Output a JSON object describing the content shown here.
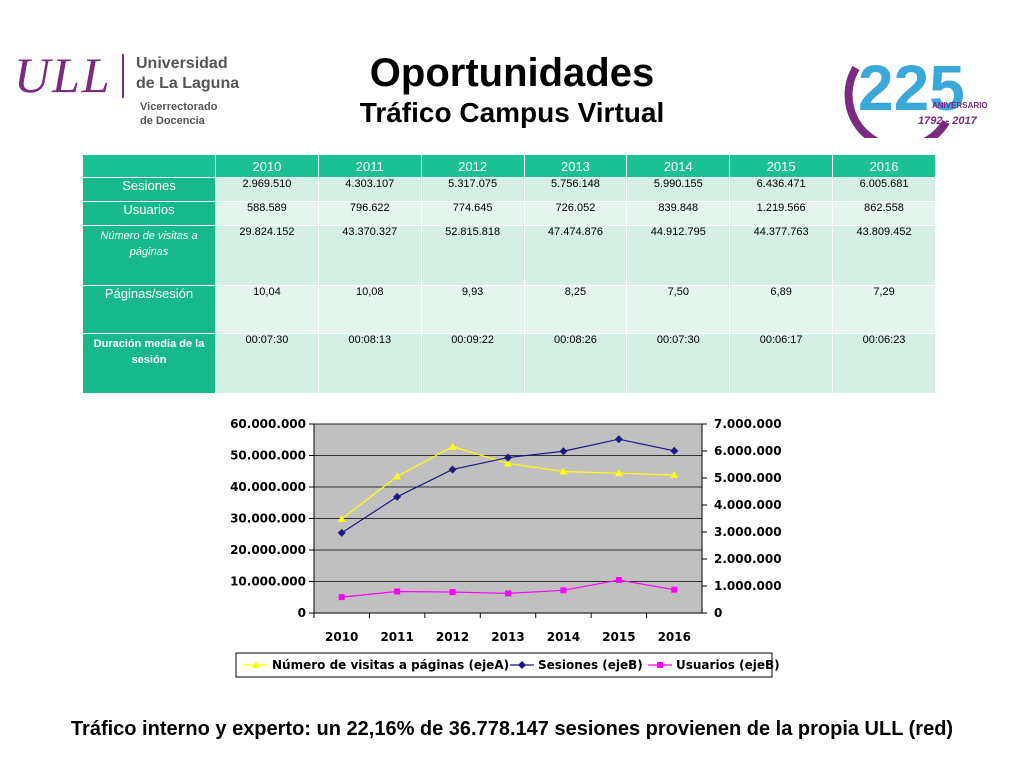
{
  "logo": {
    "mark": "ULL",
    "name_line1": "Universidad",
    "name_line2": "de La Laguna",
    "sub_line1": "Vicerrectorado",
    "sub_line2": "de Docencia"
  },
  "title": "Oportunidades",
  "subtitle": "Tráfico Campus Virtual",
  "anniversary": {
    "number": "225",
    "label": "ANIVERSARIO",
    "years": "1792 - 2017",
    "colors": {
      "purple": "#7a2a7f",
      "blue": "#3aa8d8"
    }
  },
  "table": {
    "years": [
      "2010",
      "2011",
      "2012",
      "2013",
      "2014",
      "2015",
      "2016"
    ],
    "rows": [
      {
        "label": "Sesiones",
        "values": [
          "2.969.510",
          "4.303.107",
          "5.317.075",
          "5.756.148",
          "5.990.155",
          "6.436.471",
          "6.005.681"
        ]
      },
      {
        "label": "Usuarios",
        "values": [
          "588.589",
          "796.622",
          "774.645",
          "726.052",
          "839.848",
          "1.219.566",
          "862.558"
        ]
      },
      {
        "label": "Número de visitas a páginas",
        "values": [
          "29.824.152",
          "43.370.327",
          "52.815.818",
          "47.474.876",
          "44.912.795",
          "44.377.763",
          "43.809.452"
        ]
      },
      {
        "label": "Páginas/sesión",
        "values": [
          "10,04",
          "10,08",
          "9,93",
          "8,25",
          "7,50",
          "6,89",
          "7,29"
        ]
      },
      {
        "label": "Duración media de la sesión",
        "values": [
          "00:07:30",
          "00:08:13",
          "00:09:22",
          "00:08:26",
          "00:07:30",
          "00:06:17",
          "00:06:23"
        ]
      }
    ]
  },
  "chart_data": {
    "type": "line",
    "categories": [
      "2010",
      "2011",
      "2012",
      "2013",
      "2014",
      "2015",
      "2016"
    ],
    "y_left": {
      "ylim": [
        0,
        60000000
      ],
      "ticks": [
        "0",
        "10.000.000",
        "20.000.000",
        "30.000.000",
        "40.000.000",
        "50.000.000",
        "60.000.000"
      ]
    },
    "y_right": {
      "ylim": [
        0,
        7000000
      ],
      "ticks": [
        "0",
        "1.000.000",
        "2.000.000",
        "3.000.000",
        "4.000.000",
        "5.000.000",
        "6.000.000",
        "7.000.000"
      ]
    },
    "series": [
      {
        "name": "Número de visitas a páginas (ejeA)",
        "axis": "left",
        "color": "#ffff00",
        "marker": "triangle",
        "values": [
          29824152,
          43370327,
          52815818,
          47474876,
          44912795,
          44377763,
          43809452
        ]
      },
      {
        "name": "Sesiones (ejeB)",
        "axis": "right",
        "color": "#1a1a80",
        "marker": "diamond",
        "values": [
          2969510,
          4303107,
          5317075,
          5756148,
          5990155,
          6436471,
          6005681
        ]
      },
      {
        "name": "Usuarios (ejeB)",
        "axis": "right",
        "color": "#ff00ff",
        "marker": "square",
        "values": [
          588589,
          796622,
          774645,
          726052,
          839848,
          1219566,
          862558
        ]
      }
    ],
    "plot_background": "#c0c0c0",
    "grid": true,
    "legend": "bottom"
  },
  "footer": "Tráfico interno y experto: un 22,16% de 36.778.147 sesiones provienen de la propia ULL (red)"
}
